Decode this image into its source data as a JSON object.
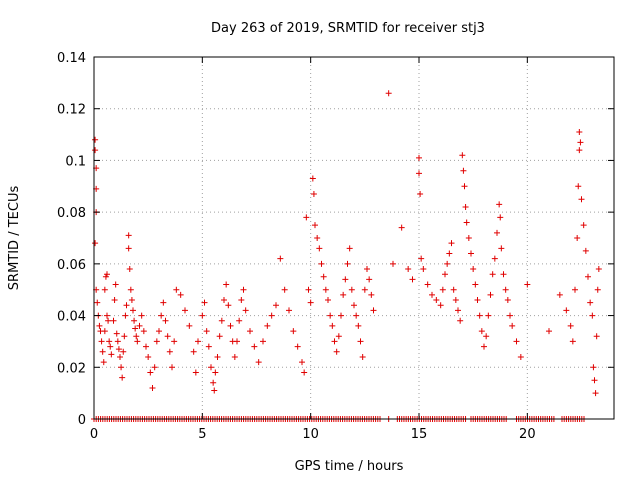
{
  "chart_data": {
    "type": "scatter",
    "title": "Day 263 of 2019, SRMTID for receiver stj3",
    "xlabel": "GPS time / hours",
    "ylabel": "SRMTID / TECUs",
    "xlim": [
      0,
      24
    ],
    "ylim": [
      0,
      0.14
    ],
    "xticks": [
      0,
      5,
      10,
      15,
      20
    ],
    "xtick_labels": [
      "0",
      "5",
      "10",
      "15",
      "20"
    ],
    "yticks": [
      0,
      0.02,
      0.04,
      0.06,
      0.08,
      0.1,
      0.12,
      0.14
    ],
    "ytick_labels": [
      "0",
      "0.02",
      "0.04",
      "0.06",
      "0.08",
      "0.1",
      "0.12",
      "0.14"
    ],
    "grid": true,
    "marker": "+",
    "color": "#e00000",
    "series": [
      {
        "name": "SRMTID",
        "points": [
          [
            0.05,
            0.108
          ],
          [
            0.05,
            0.104
          ],
          [
            0.1,
            0.097
          ],
          [
            0.1,
            0.089
          ],
          [
            0.1,
            0.08
          ],
          [
            0.05,
            0.068
          ],
          [
            0.1,
            0.05
          ],
          [
            0.15,
            0.045
          ],
          [
            0.2,
            0.04
          ],
          [
            0.25,
            0.036
          ],
          [
            0.3,
            0.034
          ],
          [
            0.35,
            0.03
          ],
          [
            0.4,
            0.026
          ],
          [
            0.45,
            0.022
          ],
          [
            0.5,
            0.034
          ],
          [
            0.5,
            0.05
          ],
          [
            0.55,
            0.055
          ],
          [
            0.6,
            0.056
          ],
          [
            0.6,
            0.04
          ],
          [
            0.65,
            0.038
          ],
          [
            0.7,
            0.03
          ],
          [
            0.75,
            0.028
          ],
          [
            0.8,
            0.025
          ],
          [
            0.9,
            0.038
          ],
          [
            0.95,
            0.046
          ],
          [
            1.0,
            0.052
          ],
          [
            1.05,
            0.033
          ],
          [
            1.1,
            0.03
          ],
          [
            1.15,
            0.027
          ],
          [
            1.2,
            0.024
          ],
          [
            1.25,
            0.02
          ],
          [
            1.3,
            0.016
          ],
          [
            1.35,
            0.026
          ],
          [
            1.4,
            0.032
          ],
          [
            1.45,
            0.04
          ],
          [
            1.5,
            0.044
          ],
          [
            1.6,
            0.071
          ],
          [
            1.6,
            0.066
          ],
          [
            1.65,
            0.058
          ],
          [
            1.7,
            0.05
          ],
          [
            1.75,
            0.046
          ],
          [
            1.8,
            0.042
          ],
          [
            1.85,
            0.038
          ],
          [
            1.9,
            0.035
          ],
          [
            1.95,
            0.032
          ],
          [
            2.0,
            0.03
          ],
          [
            2.1,
            0.036
          ],
          [
            2.2,
            0.04
          ],
          [
            2.3,
            0.034
          ],
          [
            2.4,
            0.028
          ],
          [
            2.5,
            0.024
          ],
          [
            2.6,
            0.018
          ],
          [
            2.7,
            0.012
          ],
          [
            2.8,
            0.02
          ],
          [
            2.9,
            0.03
          ],
          [
            3.0,
            0.034
          ],
          [
            3.1,
            0.04
          ],
          [
            3.2,
            0.045
          ],
          [
            3.3,
            0.038
          ],
          [
            3.4,
            0.032
          ],
          [
            3.5,
            0.026
          ],
          [
            3.6,
            0.02
          ],
          [
            3.7,
            0.03
          ],
          [
            3.8,
            0.05
          ],
          [
            4.0,
            0.048
          ],
          [
            4.2,
            0.042
          ],
          [
            4.4,
            0.036
          ],
          [
            4.6,
            0.026
          ],
          [
            4.7,
            0.018
          ],
          [
            4.8,
            0.03
          ],
          [
            5.0,
            0.04
          ],
          [
            5.1,
            0.045
          ],
          [
            5.2,
            0.034
          ],
          [
            5.3,
            0.028
          ],
          [
            5.4,
            0.02
          ],
          [
            5.5,
            0.014
          ],
          [
            5.55,
            0.011
          ],
          [
            5.6,
            0.018
          ],
          [
            5.7,
            0.024
          ],
          [
            5.8,
            0.032
          ],
          [
            5.9,
            0.038
          ],
          [
            6.0,
            0.046
          ],
          [
            6.1,
            0.052
          ],
          [
            6.2,
            0.044
          ],
          [
            6.3,
            0.036
          ],
          [
            6.4,
            0.03
          ],
          [
            6.5,
            0.024
          ],
          [
            6.6,
            0.03
          ],
          [
            6.7,
            0.038
          ],
          [
            6.8,
            0.046
          ],
          [
            6.9,
            0.05
          ],
          [
            7.0,
            0.042
          ],
          [
            7.2,
            0.034
          ],
          [
            7.4,
            0.028
          ],
          [
            7.6,
            0.022
          ],
          [
            7.8,
            0.03
          ],
          [
            8.0,
            0.036
          ],
          [
            8.2,
            0.04
          ],
          [
            8.4,
            0.044
          ],
          [
            8.6,
            0.062
          ],
          [
            8.8,
            0.05
          ],
          [
            9.0,
            0.042
          ],
          [
            9.2,
            0.034
          ],
          [
            9.4,
            0.028
          ],
          [
            9.6,
            0.022
          ],
          [
            9.7,
            0.018
          ],
          [
            9.8,
            0.078
          ],
          [
            9.9,
            0.05
          ],
          [
            10.0,
            0.045
          ],
          [
            10.1,
            0.093
          ],
          [
            10.15,
            0.087
          ],
          [
            10.2,
            0.075
          ],
          [
            10.3,
            0.07
          ],
          [
            10.4,
            0.066
          ],
          [
            10.5,
            0.06
          ],
          [
            10.6,
            0.055
          ],
          [
            10.7,
            0.05
          ],
          [
            10.8,
            0.046
          ],
          [
            10.9,
            0.04
          ],
          [
            11.0,
            0.036
          ],
          [
            11.1,
            0.03
          ],
          [
            11.2,
            0.026
          ],
          [
            11.3,
            0.032
          ],
          [
            11.4,
            0.04
          ],
          [
            11.5,
            0.048
          ],
          [
            11.6,
            0.054
          ],
          [
            11.7,
            0.06
          ],
          [
            11.8,
            0.066
          ],
          [
            11.9,
            0.05
          ],
          [
            12.0,
            0.044
          ],
          [
            12.1,
            0.04
          ],
          [
            12.2,
            0.036
          ],
          [
            12.3,
            0.03
          ],
          [
            12.4,
            0.024
          ],
          [
            12.5,
            0.05
          ],
          [
            12.6,
            0.058
          ],
          [
            12.7,
            0.054
          ],
          [
            12.8,
            0.048
          ],
          [
            12.9,
            0.042
          ],
          [
            13.6,
            0.126
          ],
          [
            13.8,
            0.06
          ],
          [
            14.2,
            0.074
          ],
          [
            14.5,
            0.058
          ],
          [
            14.7,
            0.054
          ],
          [
            15.0,
            0.101
          ],
          [
            15.0,
            0.095
          ],
          [
            15.05,
            0.087
          ],
          [
            15.1,
            0.062
          ],
          [
            15.2,
            0.058
          ],
          [
            15.4,
            0.052
          ],
          [
            15.6,
            0.048
          ],
          [
            15.8,
            0.046
          ],
          [
            16.0,
            0.044
          ],
          [
            16.1,
            0.05
          ],
          [
            16.2,
            0.056
          ],
          [
            16.3,
            0.06
          ],
          [
            16.4,
            0.064
          ],
          [
            16.5,
            0.068
          ],
          [
            16.6,
            0.05
          ],
          [
            16.7,
            0.046
          ],
          [
            16.8,
            0.042
          ],
          [
            16.9,
            0.038
          ],
          [
            17.0,
            0.102
          ],
          [
            17.05,
            0.096
          ],
          [
            17.1,
            0.09
          ],
          [
            17.15,
            0.082
          ],
          [
            17.2,
            0.076
          ],
          [
            17.3,
            0.07
          ],
          [
            17.4,
            0.064
          ],
          [
            17.5,
            0.058
          ],
          [
            17.6,
            0.052
          ],
          [
            17.7,
            0.046
          ],
          [
            17.8,
            0.04
          ],
          [
            17.9,
            0.034
          ],
          [
            18.0,
            0.028
          ],
          [
            18.1,
            0.032
          ],
          [
            18.2,
            0.04
          ],
          [
            18.3,
            0.048
          ],
          [
            18.4,
            0.056
          ],
          [
            18.5,
            0.062
          ],
          [
            18.6,
            0.072
          ],
          [
            18.7,
            0.083
          ],
          [
            18.75,
            0.078
          ],
          [
            18.8,
            0.066
          ],
          [
            18.9,
            0.056
          ],
          [
            19.0,
            0.05
          ],
          [
            19.1,
            0.046
          ],
          [
            19.2,
            0.04
          ],
          [
            19.3,
            0.036
          ],
          [
            19.5,
            0.03
          ],
          [
            19.7,
            0.024
          ],
          [
            20.0,
            0.052
          ],
          [
            21.0,
            0.034
          ],
          [
            21.5,
            0.048
          ],
          [
            21.8,
            0.042
          ],
          [
            22.0,
            0.036
          ],
          [
            22.1,
            0.03
          ],
          [
            22.2,
            0.05
          ],
          [
            22.3,
            0.07
          ],
          [
            22.35,
            0.09
          ],
          [
            22.4,
            0.104
          ],
          [
            22.4,
            0.111
          ],
          [
            22.45,
            0.107
          ],
          [
            22.5,
            0.085
          ],
          [
            22.6,
            0.075
          ],
          [
            22.7,
            0.065
          ],
          [
            22.8,
            0.055
          ],
          [
            22.9,
            0.045
          ],
          [
            23.0,
            0.04
          ],
          [
            23.05,
            0.02
          ],
          [
            23.1,
            0.015
          ],
          [
            23.15,
            0.01
          ],
          [
            23.2,
            0.032
          ],
          [
            23.25,
            0.05
          ],
          [
            23.3,
            0.058
          ]
        ]
      },
      {
        "name": "SRMTID zero band",
        "x_ranges": [
          [
            0.0,
            13.3
          ],
          [
            13.6,
            13.7
          ],
          [
            14.0,
            17.2
          ],
          [
            17.4,
            19.1
          ],
          [
            19.5,
            21.3
          ],
          [
            21.6,
            22.7
          ]
        ],
        "y": 0
      }
    ]
  }
}
